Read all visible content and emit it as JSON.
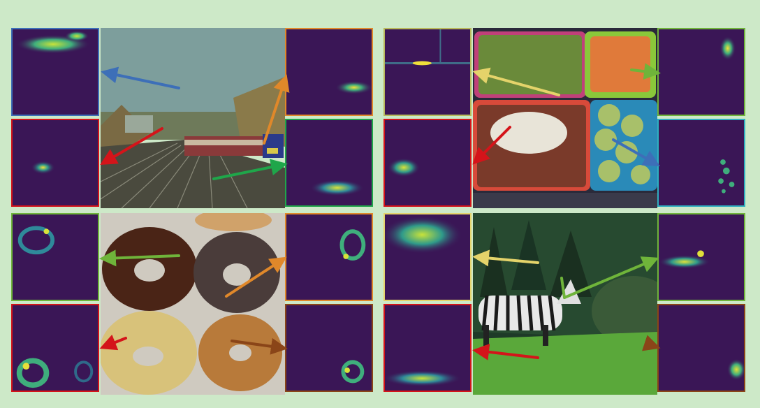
{
  "colors": {
    "background": "#cde9c8",
    "heatmap_base": "#3a1656",
    "blue": "#3d6fb8",
    "red": "#d4141a",
    "orange": "#e0882a",
    "green": "#1fa64a",
    "lime": "#6fb43a",
    "yellow": "#e4d36a",
    "brown": "#8a4518",
    "olive": "#b8b85a",
    "teal": "#2fb0c0"
  },
  "panels": [
    {
      "name": "train-scene",
      "photo_icon": "train-photo"
    },
    {
      "name": "lunchbox-scene",
      "photo_icon": "lunchbox-photo"
    },
    {
      "name": "donuts-scene",
      "photo_icon": "donuts-photo"
    },
    {
      "name": "zebra-scene",
      "photo_icon": "zebra-photo"
    }
  ]
}
